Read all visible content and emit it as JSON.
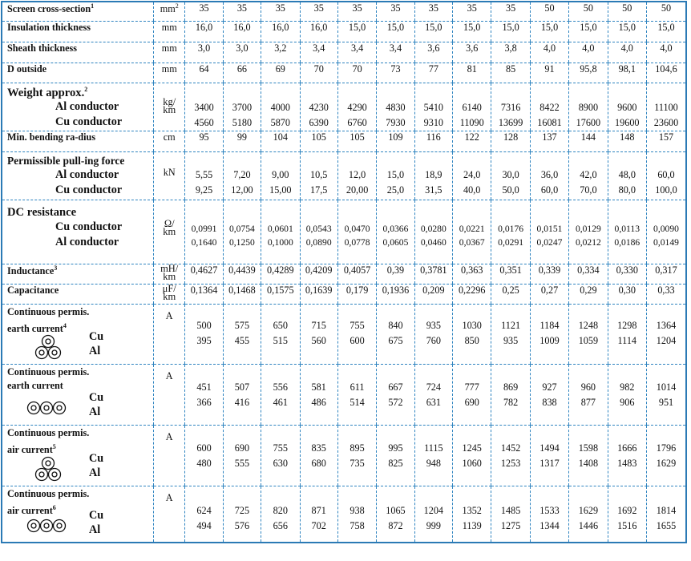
{
  "rows": {
    "screen": {
      "label": "Screen cross-section",
      "sup": "1",
      "unit": "mm",
      "unit_sup": "2",
      "values": [
        "35",
        "35",
        "35",
        "35",
        "35",
        "35",
        "35",
        "35",
        "35",
        "50",
        "50",
        "50",
        "50"
      ]
    },
    "insulation": {
      "label": "Insulation thickness",
      "unit": "mm",
      "values": [
        "16,0",
        "16,0",
        "16,0",
        "16,0",
        "15,0",
        "15,0",
        "15,0",
        "15,0",
        "15,0",
        "15,0",
        "15,0",
        "15,0",
        "15,0"
      ]
    },
    "sheath": {
      "label": "Sheath thickness",
      "unit": "mm",
      "values": [
        "3,0",
        "3,0",
        "3,2",
        "3,4",
        "3,4",
        "3,4",
        "3,6",
        "3,6",
        "3,8",
        "4,0",
        "4,0",
        "4,0",
        "4,0"
      ]
    },
    "d_outside": {
      "label": "D outside",
      "unit": "mm",
      "values": [
        "64",
        "66",
        "69",
        "70",
        "70",
        "73",
        "77",
        "81",
        "85",
        "91",
        "95,8",
        "98,1",
        "104,6"
      ]
    },
    "weight": {
      "label": "Weight approx.",
      "sup": "2",
      "sub1": "Al conductor",
      "sub2": "Cu conductor",
      "unit_top": "kg/",
      "unit_bot": "km",
      "values1": [
        "3400",
        "3700",
        "4000",
        "4230",
        "4290",
        "4830",
        "5410",
        "6140",
        "7316",
        "8422",
        "8900",
        "9600",
        "11100"
      ],
      "values2": [
        "4560",
        "5180",
        "5870",
        "6390",
        "6760",
        "7930",
        "9310",
        "11090",
        "13699",
        "16081",
        "17600",
        "19600",
        "23600"
      ]
    },
    "bending": {
      "label": "Min. bending ra-dius",
      "unit": "cm",
      "values": [
        "95",
        "99",
        "104",
        "105",
        "105",
        "109",
        "116",
        "122",
        "128",
        "137",
        "144",
        "148",
        "157"
      ]
    },
    "pulling": {
      "label": "Permissible pull-ing force",
      "sub1": "Al conductor",
      "sub2": "Cu conductor",
      "unit": "kN",
      "values1": [
        "5,55",
        "7,20",
        "9,00",
        "10,5",
        "12,0",
        "15,0",
        "18,9",
        "24,0",
        "30,0",
        "36,0",
        "42,0",
        "48,0",
        "60,0"
      ],
      "values2": [
        "9,25",
        "12,00",
        "15,00",
        "17,5",
        "20,00",
        "25,0",
        "31,5",
        "40,0",
        "50,0",
        "60,0",
        "70,0",
        "80,0",
        "100,0"
      ]
    },
    "dc": {
      "label": "DC resistance",
      "sub1": "Cu conductor",
      "sub2": "Al conductor",
      "unit_top": "Ω/",
      "unit_bot": "km",
      "values1": [
        "0,0991",
        "0,0754",
        "0,0601",
        "0,0543",
        "0,0470",
        "0,0366",
        "0,0280",
        "0,0221",
        "0,0176",
        "0,0151",
        "0,0129",
        "0,0113",
        "0,0090"
      ],
      "values2": [
        "0,1640",
        "0,1250",
        "0,1000",
        "0,0890",
        "0,0778",
        "0,0605",
        "0,0460",
        "0,0367",
        "0,0291",
        "0,0247",
        "0,0212",
        "0,0186",
        "0,0149"
      ]
    },
    "inductance": {
      "label": "Inductance",
      "sup": "3",
      "unit_top": "mH/",
      "unit_bot": "km",
      "values": [
        "0,4627",
        "0,4439",
        "0,4289",
        "0,4209",
        "0,4057",
        "0,39",
        "0,3781",
        "0,363",
        "0,351",
        "0,339",
        "0,334",
        "0,330",
        "0,317"
      ]
    },
    "capacitance": {
      "label": "Capacitance",
      "unit_top": "μF/",
      "unit_bot": "km",
      "values": [
        "0,1364",
        "0,1468",
        "0,1575",
        "0,1639",
        "0,179",
        "0,1936",
        "0,209",
        "0,2296",
        "0,25",
        "0,27",
        "0,29",
        "0,30",
        "0,33"
      ]
    },
    "earth_trefoil": {
      "label1": "Continuous permis.",
      "label2": "earth current",
      "sup": "4",
      "icon": "trefoil-cables-icon",
      "sub1": "Cu",
      "sub2": "Al",
      "unit": "A",
      "values1": [
        "500",
        "575",
        "650",
        "715",
        "755",
        "840",
        "935",
        "1030",
        "1121",
        "1184",
        "1248",
        "1298",
        "1364"
      ],
      "values2": [
        "395",
        "455",
        "515",
        "560",
        "600",
        "675",
        "760",
        "850",
        "935",
        "1009",
        "1059",
        "1114",
        "1204"
      ]
    },
    "earth_flat": {
      "label1": "Continuous permis.",
      "label2": "earth current",
      "icon": "flat-cables-icon",
      "sub1": "Cu",
      "sub2": "Al",
      "unit": "A",
      "values1": [
        "451",
        "507",
        "556",
        "581",
        "611",
        "667",
        "724",
        "777",
        "869",
        "927",
        "960",
        "982",
        "1014"
      ],
      "values2": [
        "366",
        "416",
        "461",
        "486",
        "514",
        "572",
        "631",
        "690",
        "782",
        "838",
        "877",
        "906",
        "951"
      ]
    },
    "air_trefoil": {
      "label1": "Continuous permis.",
      "label2": "air current",
      "sup": "5",
      "icon": "trefoil-cables-icon",
      "sub1": "Cu",
      "sub2": "Al",
      "unit": "A",
      "values1": [
        "600",
        "690",
        "755",
        "835",
        "895",
        "995",
        "1115",
        "1245",
        "1452",
        "1494",
        "1598",
        "1666",
        "1796"
      ],
      "values2": [
        "480",
        "555",
        "630",
        "680",
        "735",
        "825",
        "948",
        "1060",
        "1253",
        "1317",
        "1408",
        "1483",
        "1629"
      ]
    },
    "air_flat": {
      "label1": "Continuous permis.",
      "label2": "air current",
      "sup": "6",
      "icon": "flat-cables-icon",
      "sub1": "Cu",
      "sub2": "Al",
      "unit": "A",
      "values1": [
        "624",
        "725",
        "820",
        "871",
        "938",
        "1065",
        "1204",
        "1352",
        "1485",
        "1533",
        "1629",
        "1692",
        "1814"
      ],
      "values2": [
        "494",
        "576",
        "656",
        "702",
        "758",
        "872",
        "999",
        "1139",
        "1275",
        "1344",
        "1446",
        "1516",
        "1655"
      ]
    }
  },
  "colors": {
    "grid": "#2f84c0",
    "border": "#2b7ab5",
    "text": "#111111"
  }
}
